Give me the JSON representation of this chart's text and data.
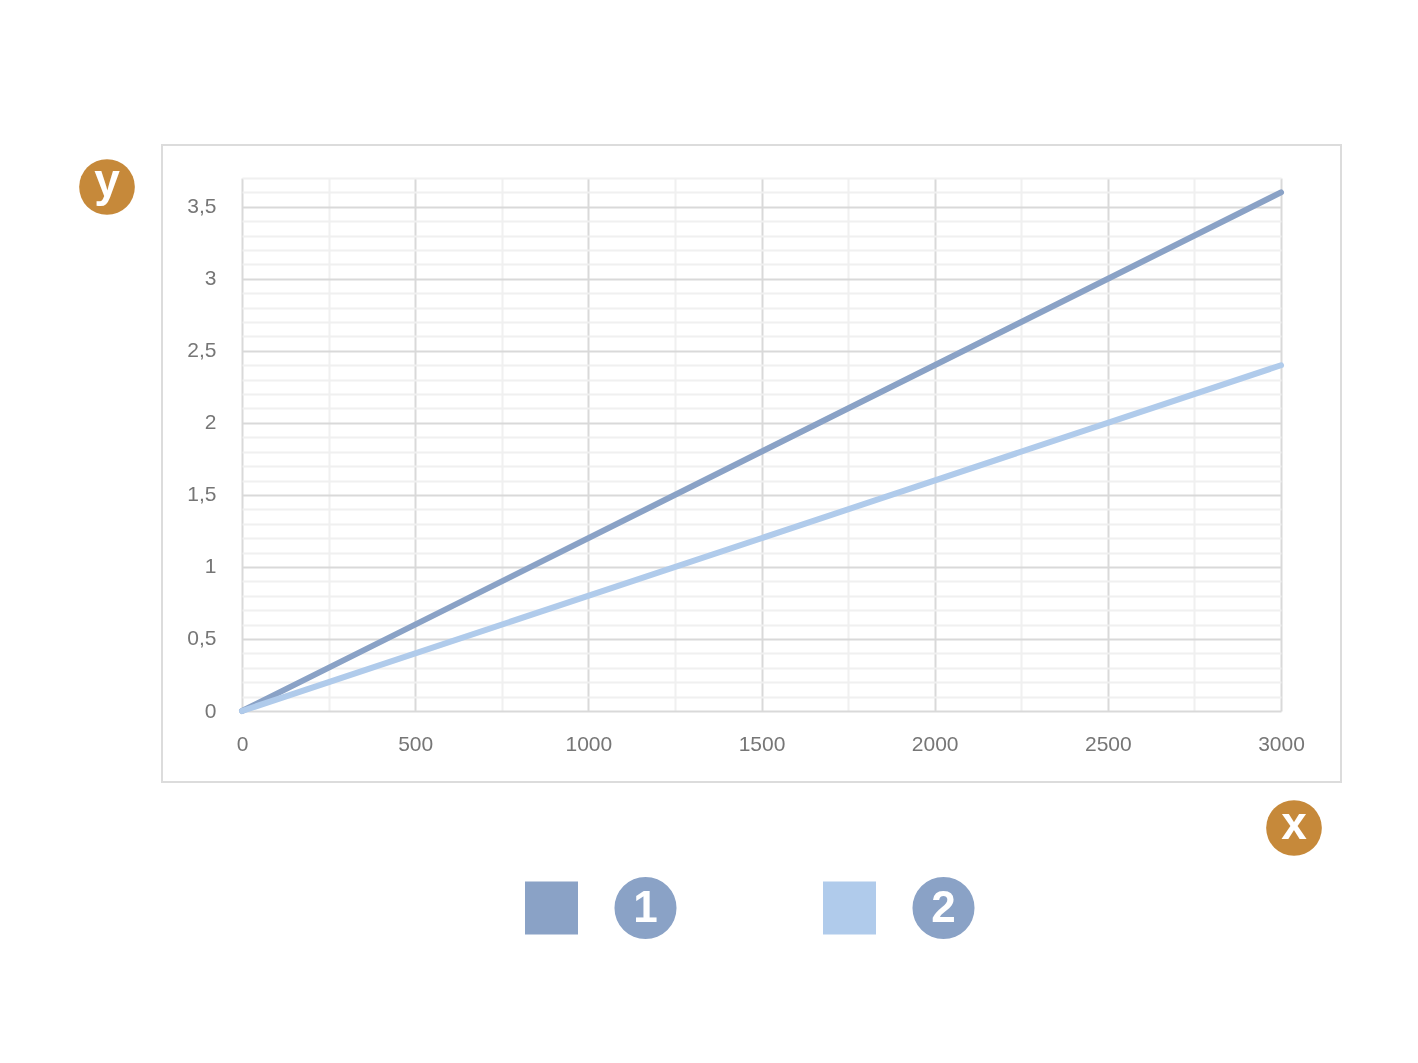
{
  "chart_data": {
    "type": "line",
    "xlabel": "x",
    "ylabel": "y",
    "x": [
      0,
      3000
    ],
    "series": [
      {
        "name": "1",
        "color": "#8aa2c6",
        "values": [
          0,
          3.6
        ]
      },
      {
        "name": "2",
        "color": "#b0cbeb",
        "values": [
          0,
          2.4
        ]
      }
    ],
    "xlim": [
      0,
      3000
    ],
    "ylim": [
      0,
      3.7
    ],
    "xticks": [
      0,
      {
        "value": 250,
        "label": null
      },
      500,
      {
        "value": 750,
        "label": null
      },
      1000,
      {
        "value": 1250,
        "label": null
      },
      1500,
      {
        "value": 1750,
        "label": null
      },
      2000,
      {
        "value": 2250,
        "label": null
      },
      2500,
      {
        "value": 2750,
        "label": null
      },
      3000
    ],
    "yticks": [
      0,
      {
        "value": 0.1,
        "label": null
      },
      {
        "value": 0.2,
        "label": null
      },
      {
        "value": 0.3,
        "label": null
      },
      {
        "value": 0.4,
        "label": null
      },
      {
        "value": 0.5,
        "label": "0,5"
      },
      {
        "value": 0.6,
        "label": null
      },
      {
        "value": 0.7,
        "label": null
      },
      {
        "value": 0.8,
        "label": null
      },
      {
        "value": 0.9,
        "label": null
      },
      1,
      {
        "value": 1.1,
        "label": null
      },
      {
        "value": 1.2,
        "label": null
      },
      {
        "value": 1.3,
        "label": null
      },
      {
        "value": 1.4,
        "label": null
      },
      {
        "value": 1.5,
        "label": "1,5"
      },
      {
        "value": 1.6,
        "label": null
      },
      {
        "value": 1.7,
        "label": null
      },
      {
        "value": 1.8,
        "label": null
      },
      {
        "value": 1.9,
        "label": null
      },
      2,
      {
        "value": 2.1,
        "label": null
      },
      {
        "value": 2.2,
        "label": null
      },
      {
        "value": 2.3,
        "label": null
      },
      {
        "value": 2.4,
        "label": null
      },
      {
        "value": 2.5,
        "label": "2,5"
      },
      {
        "value": 2.6,
        "label": null
      },
      {
        "value": 2.7,
        "label": null
      },
      {
        "value": 2.8,
        "label": null
      },
      {
        "value": 2.9,
        "label": null
      },
      3,
      {
        "value": 3.1,
        "label": null
      },
      {
        "value": 3.2,
        "label": null
      },
      {
        "value": 3.3,
        "label": null
      },
      {
        "value": 3.4,
        "label": null
      },
      {
        "value": 3.5,
        "label": "3,5"
      },
      {
        "value": 3.6,
        "label": null
      },
      {
        "value": 3.7,
        "label": null
      }
    ],
    "grid": true,
    "legend": "bottom",
    "line_style": "solid"
  }
}
